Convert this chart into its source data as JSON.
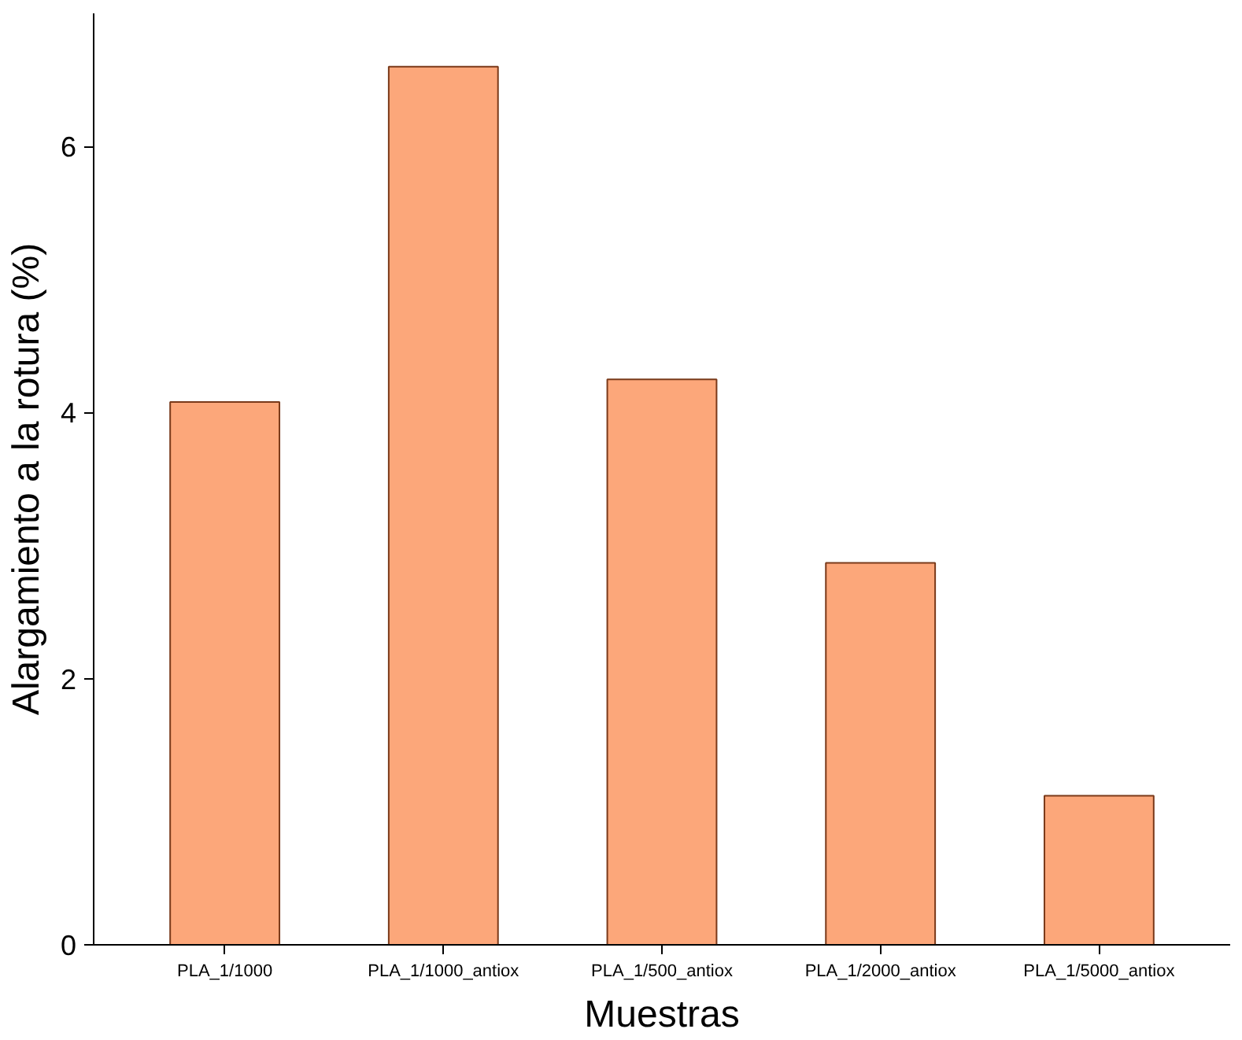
{
  "chart_data": {
    "type": "bar",
    "xlabel": "Muestras",
    "ylabel": "Alargamiento a la rotura (%)",
    "categories": [
      "PLA_1/1000",
      "PLA_1/1000_antiox",
      "PLA_1/500_antiox",
      "PLA_1/2000_antiox",
      "PLA_1/5000_antiox"
    ],
    "values": [
      4.08,
      6.6,
      4.25,
      2.87,
      1.12
    ],
    "color": "#fca77a",
    "ylim": [
      0,
      7
    ],
    "yticks": [
      0,
      2,
      4,
      6
    ],
    "grid": false
  }
}
